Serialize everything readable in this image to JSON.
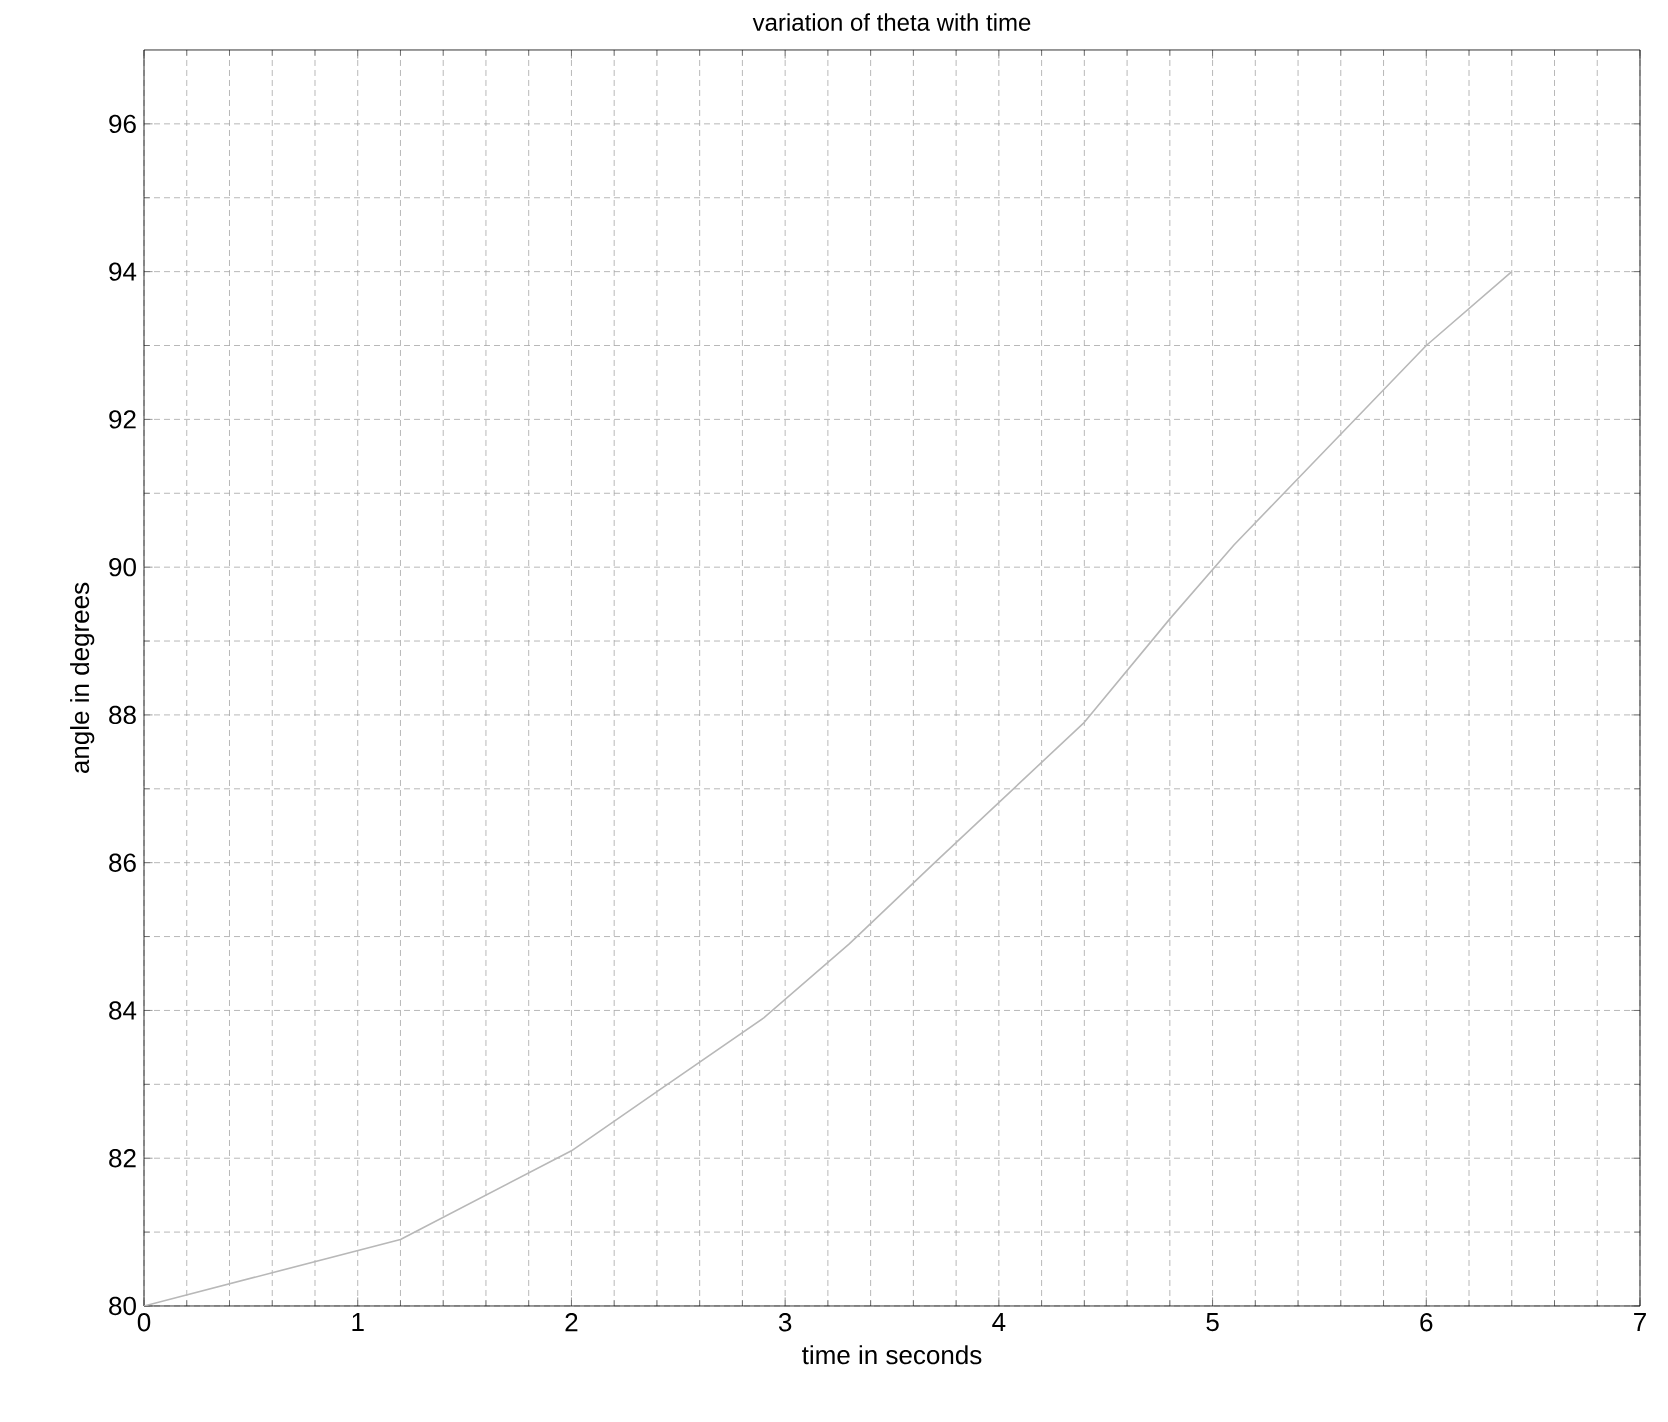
{
  "chart_data": {
    "type": "line",
    "title": "variation of theta with time",
    "xlabel": "time in seconds",
    "ylabel": "angle in degrees",
    "series": [
      {
        "color": "#b8b8b8",
        "x": [
          0,
          1.2,
          2.0,
          2.4,
          2.9,
          3.3,
          3.7,
          4.4,
          4.8,
          5.1,
          5.4,
          6.0,
          6.4
        ],
        "values": [
          80,
          80.9,
          82.1,
          82.9,
          83.9,
          84.9,
          86,
          87.9,
          89.3,
          90.3,
          91.2,
          93,
          94
        ]
      }
    ],
    "xlim": [
      0,
      7
    ],
    "ylim": [
      80,
      97
    ],
    "xticks": [
      0,
      1,
      2,
      3,
      4,
      5,
      6,
      7
    ],
    "yticks": [
      80,
      82,
      84,
      86,
      88,
      90,
      92,
      94,
      96
    ],
    "grid": true,
    "line_style": "solid"
  }
}
